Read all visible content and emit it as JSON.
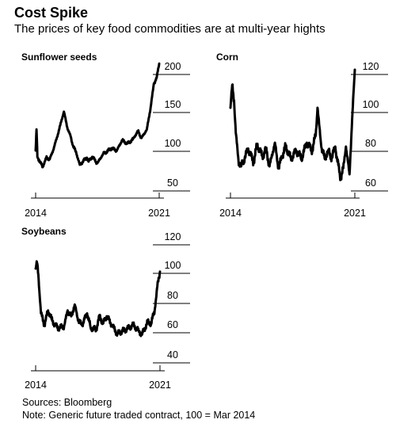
{
  "header": {
    "title": "Cost Spike",
    "subtitle": "The prices of key food commodities are at multi-year hights"
  },
  "footer": {
    "sources": "Sources: Bloomberg",
    "note": "Note: Generic future traded contract, 100 = Mar 2014"
  },
  "chart_data": [
    {
      "type": "line",
      "title": "Sunflower seeds",
      "yticks": [
        50,
        100,
        150,
        200
      ],
      "ylim": [
        45,
        212
      ],
      "xticks": [
        "2014",
        "2021"
      ],
      "xlim": [
        2014,
        2021
      ],
      "grid": false,
      "series": [
        {
          "x": [
            2014.0,
            2014.05,
            2014.1,
            2014.2,
            2014.4,
            2014.6,
            2014.8,
            2015.0,
            2015.2,
            2015.4,
            2015.6,
            2015.8,
            2016.0,
            2016.1,
            2016.3,
            2016.5,
            2016.7,
            2016.9,
            2017.0,
            2017.2,
            2017.5,
            2017.8,
            2018.0,
            2018.3,
            2018.6,
            2018.9,
            2019.2,
            2019.5,
            2019.8,
            2020.0,
            2020.3,
            2020.5,
            2020.7,
            2020.85,
            2021.0
          ],
          "values": [
            95,
            122,
            87,
            83,
            74,
            86,
            84,
            96,
            111,
            128,
            145,
            124,
            112,
            102,
            92,
            77,
            82,
            86,
            81,
            87,
            79,
            90,
            93,
            98,
            95,
            108,
            104,
            109,
            120,
            111,
            122,
            148,
            182,
            189,
            208
          ]
        }
      ]
    },
    {
      "type": "line",
      "title": "Corn",
      "yticks": [
        60,
        80,
        100,
        120
      ],
      "ylim": [
        58,
        128
      ],
      "xticks": [
        "2014",
        "2021"
      ],
      "xlim": [
        2014,
        2021
      ],
      "grid": false,
      "series": [
        {
          "x": [
            2014.0,
            2014.1,
            2014.2,
            2014.3,
            2014.45,
            2014.6,
            2014.8,
            2015.0,
            2015.3,
            2015.5,
            2015.8,
            2016.0,
            2016.2,
            2016.5,
            2016.7,
            2016.9,
            2017.1,
            2017.4,
            2017.7,
            2018.0,
            2018.3,
            2018.6,
            2018.8,
            2018.9,
            2019.1,
            2019.3,
            2019.5,
            2019.7,
            2019.9,
            2020.0,
            2020.2,
            2020.35,
            2020.5,
            2020.7,
            2020.85,
            2021.0
          ],
          "values": [
            100,
            112,
            104,
            87,
            73,
            70,
            74,
            79,
            72,
            81,
            75,
            79,
            70,
            82,
            69,
            75,
            80,
            74,
            78,
            74,
            82,
            78,
            86,
            100,
            81,
            74,
            78,
            74,
            80,
            74,
            64,
            69,
            80,
            66,
            94,
            120
          ]
        }
      ]
    },
    {
      "type": "line",
      "title": "Soybeans",
      "yticks": [
        40,
        60,
        80,
        100,
        120
      ],
      "ylim": [
        36,
        126
      ],
      "xticks": [
        "2014",
        "2021"
      ],
      "xlim": [
        2014,
        2021
      ],
      "grid": false,
      "series": [
        {
          "x": [
            2014.0,
            2014.08,
            2014.15,
            2014.3,
            2014.5,
            2014.7,
            2014.9,
            2015.1,
            2015.3,
            2015.6,
            2015.8,
            2016.0,
            2016.2,
            2016.4,
            2016.6,
            2016.9,
            2017.1,
            2017.4,
            2017.6,
            2017.8,
            2018.0,
            2018.3,
            2018.6,
            2018.9,
            2019.2,
            2019.5,
            2019.8,
            2020.0,
            2020.3,
            2020.5,
            2020.7,
            2020.85,
            2021.0
          ],
          "values": [
            100,
            104,
            96,
            70,
            62,
            72,
            66,
            62,
            60,
            61,
            72,
            68,
            76,
            65,
            62,
            70,
            60,
            59,
            68,
            63,
            68,
            62,
            56,
            58,
            60,
            62,
            58,
            56,
            64,
            63,
            72,
            88,
            98
          ]
        }
      ]
    }
  ]
}
